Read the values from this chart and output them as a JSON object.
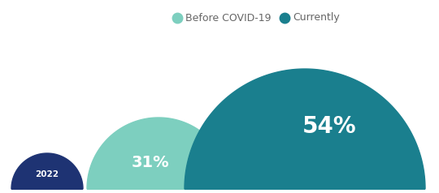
{
  "before_label": "31%",
  "before_color": "#7dcfbf",
  "before_legend": "Before COVID-19",
  "current_label": "54%",
  "current_color": "#1a7f8e",
  "current_legend": "Currently",
  "year_label": "2022",
  "year_color": "#1e3373",
  "background_color": "#ffffff",
  "legend_text_color": "#666666",
  "label_text_color": "#ffffff",
  "figwidth": 5.4,
  "figheight": 2.38,
  "dpi": 100
}
